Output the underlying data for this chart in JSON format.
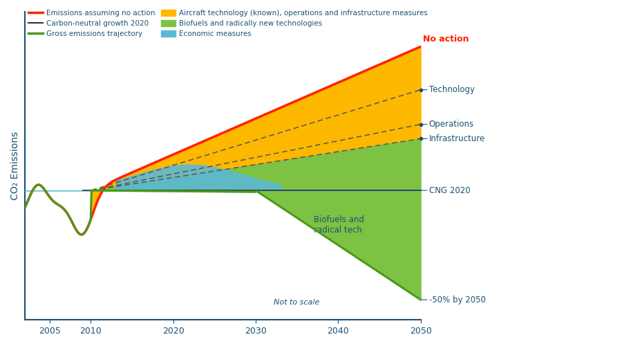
{
  "no_action_color": "#FF2200",
  "yellow_color": "#FFB800",
  "green_color": "#7DC242",
  "blue_color": "#5BB8D4",
  "axis_color": "#1a5276",
  "text_color": "#1a5276",
  "annotation_color": "#1a5276",
  "background": "white",
  "ylabel_text": "CO₂ Emissions",
  "legend_labels": {
    "no_action": "Emissions assuming no action",
    "cng": "Carbon-neutral growth 2020",
    "gross": "Gross emissions trajectory",
    "aircraft": "Aircraft technology (known), operations and infrastructure measures",
    "biofuels": "Biofuels and radically new technologies",
    "economic": "Economic measures"
  },
  "right_annotations": {
    "no_action": "No action",
    "technology": "Technology",
    "operations": "Operations",
    "infrastructure": "Infrastructure",
    "cng": "CNG 2020",
    "fifty": "-50% by 2050",
    "not_to_scale": "Not to scale"
  },
  "biofuels_label": "Biofuels and\nradical tech"
}
